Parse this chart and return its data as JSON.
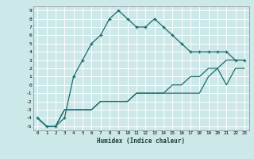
{
  "xlabel": "Humidex (Indice chaleur)",
  "background_color": "#cde8e8",
  "plot_bg_color": "#cde8e8",
  "grid_color": "#ffffff",
  "line_color": "#1e6b6b",
  "xlim": [
    -0.5,
    23.5
  ],
  "ylim": [
    -5.5,
    9.5
  ],
  "xticks": [
    0,
    1,
    2,
    3,
    4,
    5,
    6,
    7,
    8,
    9,
    10,
    11,
    12,
    13,
    14,
    15,
    16,
    17,
    18,
    19,
    20,
    21,
    22,
    23
  ],
  "yticks": [
    -5,
    -4,
    -3,
    -2,
    -1,
    0,
    1,
    2,
    3,
    4,
    5,
    6,
    7,
    8,
    9
  ],
  "series1_x": [
    0,
    1,
    2,
    3,
    4,
    5,
    6,
    7,
    8,
    9,
    10,
    11,
    12,
    13,
    14,
    15,
    16,
    17,
    18,
    19,
    20,
    21,
    22,
    23
  ],
  "series1_y": [
    -4,
    -5,
    -5,
    -4,
    1,
    3,
    5,
    6,
    8,
    9,
    8,
    7,
    7,
    8,
    7,
    6,
    5,
    4,
    4,
    4,
    4,
    4,
    3,
    3
  ],
  "series2_x": [
    0,
    1,
    2,
    3,
    4,
    5,
    6,
    7,
    8,
    9,
    10,
    11,
    12,
    13,
    14,
    15,
    16,
    17,
    18,
    19,
    20,
    21,
    22,
    23
  ],
  "series2_y": [
    -4,
    -5,
    -5,
    -3,
    -3,
    -3,
    -3,
    -2,
    -2,
    -2,
    -2,
    -1,
    -1,
    -1,
    -1,
    0,
    0,
    1,
    1,
    2,
    2,
    3,
    3,
    3
  ],
  "series3_x": [
    0,
    1,
    2,
    3,
    4,
    5,
    6,
    7,
    8,
    9,
    10,
    11,
    12,
    13,
    14,
    15,
    16,
    17,
    18,
    19,
    20,
    21,
    22,
    23
  ],
  "series3_y": [
    -4,
    -5,
    -5,
    -3,
    -3,
    -3,
    -3,
    -2,
    -2,
    -2,
    -2,
    -1,
    -1,
    -1,
    -1,
    -1,
    -1,
    -1,
    -1,
    1,
    2,
    0,
    2,
    2
  ]
}
